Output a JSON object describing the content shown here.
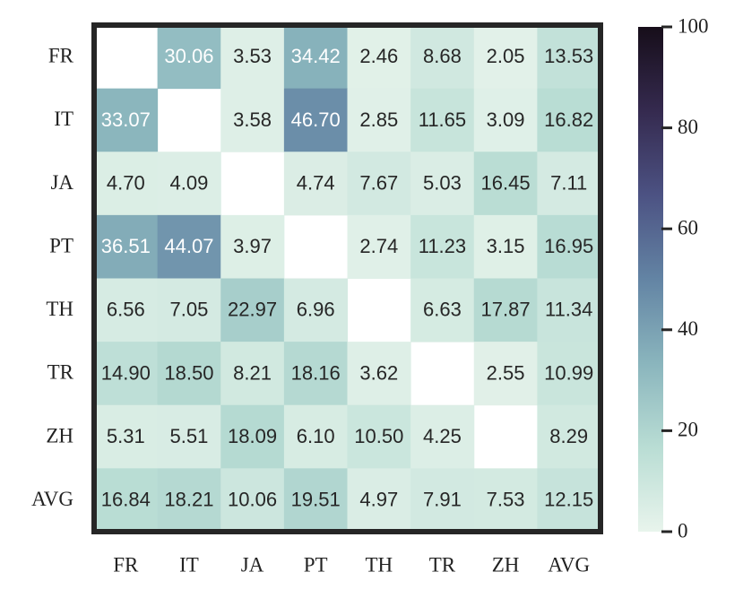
{
  "chart_data": {
    "type": "heatmap",
    "rows": [
      "FR",
      "IT",
      "JA",
      "PT",
      "TH",
      "TR",
      "ZH",
      "AVG"
    ],
    "columns": [
      "FR",
      "IT",
      "JA",
      "PT",
      "TH",
      "TR",
      "ZH",
      "AVG"
    ],
    "values": [
      [
        null,
        30.06,
        3.53,
        34.42,
        2.46,
        8.68,
        2.05,
        13.53
      ],
      [
        33.07,
        null,
        3.58,
        46.7,
        2.85,
        11.65,
        3.09,
        16.82
      ],
      [
        4.7,
        4.09,
        null,
        4.74,
        7.67,
        5.03,
        16.45,
        7.11
      ],
      [
        36.51,
        44.07,
        3.97,
        null,
        2.74,
        11.23,
        3.15,
        16.95
      ],
      [
        6.56,
        7.05,
        22.97,
        6.96,
        null,
        6.63,
        17.87,
        11.34
      ],
      [
        14.9,
        18.5,
        8.21,
        18.16,
        3.62,
        null,
        2.55,
        10.99
      ],
      [
        5.31,
        5.51,
        18.09,
        6.1,
        10.5,
        4.25,
        null,
        8.29
      ],
      [
        16.84,
        18.21,
        10.06,
        19.51,
        4.97,
        7.91,
        7.53,
        12.15
      ]
    ],
    "value_labels": [
      [
        null,
        "30.06",
        "3.53",
        "34.42",
        "2.46",
        "8.68",
        "2.05",
        "13.53"
      ],
      [
        "33.07",
        null,
        "3.58",
        "46.70",
        "2.85",
        "11.65",
        "3.09",
        "16.82"
      ],
      [
        "4.70",
        "4.09",
        null,
        "4.74",
        "7.67",
        "5.03",
        "16.45",
        "7.11"
      ],
      [
        "36.51",
        "44.07",
        "3.97",
        null,
        "2.74",
        "11.23",
        "3.15",
        "16.95"
      ],
      [
        "6.56",
        "7.05",
        "22.97",
        "6.96",
        null,
        "6.63",
        "17.87",
        "11.34"
      ],
      [
        "14.90",
        "18.50",
        "8.21",
        "18.16",
        "3.62",
        null,
        "2.55",
        "10.99"
      ],
      [
        "5.31",
        "5.51",
        "18.09",
        "6.10",
        "10.50",
        "4.25",
        null,
        "8.29"
      ],
      [
        "16.84",
        "18.21",
        "10.06",
        "19.51",
        "4.97",
        "7.91",
        "7.53",
        "12.15"
      ]
    ],
    "colorscale": [
      "#e8f4ec",
      "#b9ddd4",
      "#8ab5bd",
      "#6384a4",
      "#4c5283",
      "#352a4f",
      "#170e1a"
    ],
    "colorbar": {
      "lim": [
        0,
        100
      ],
      "ticks": [
        0,
        20,
        40,
        60,
        80,
        100
      ]
    }
  }
}
